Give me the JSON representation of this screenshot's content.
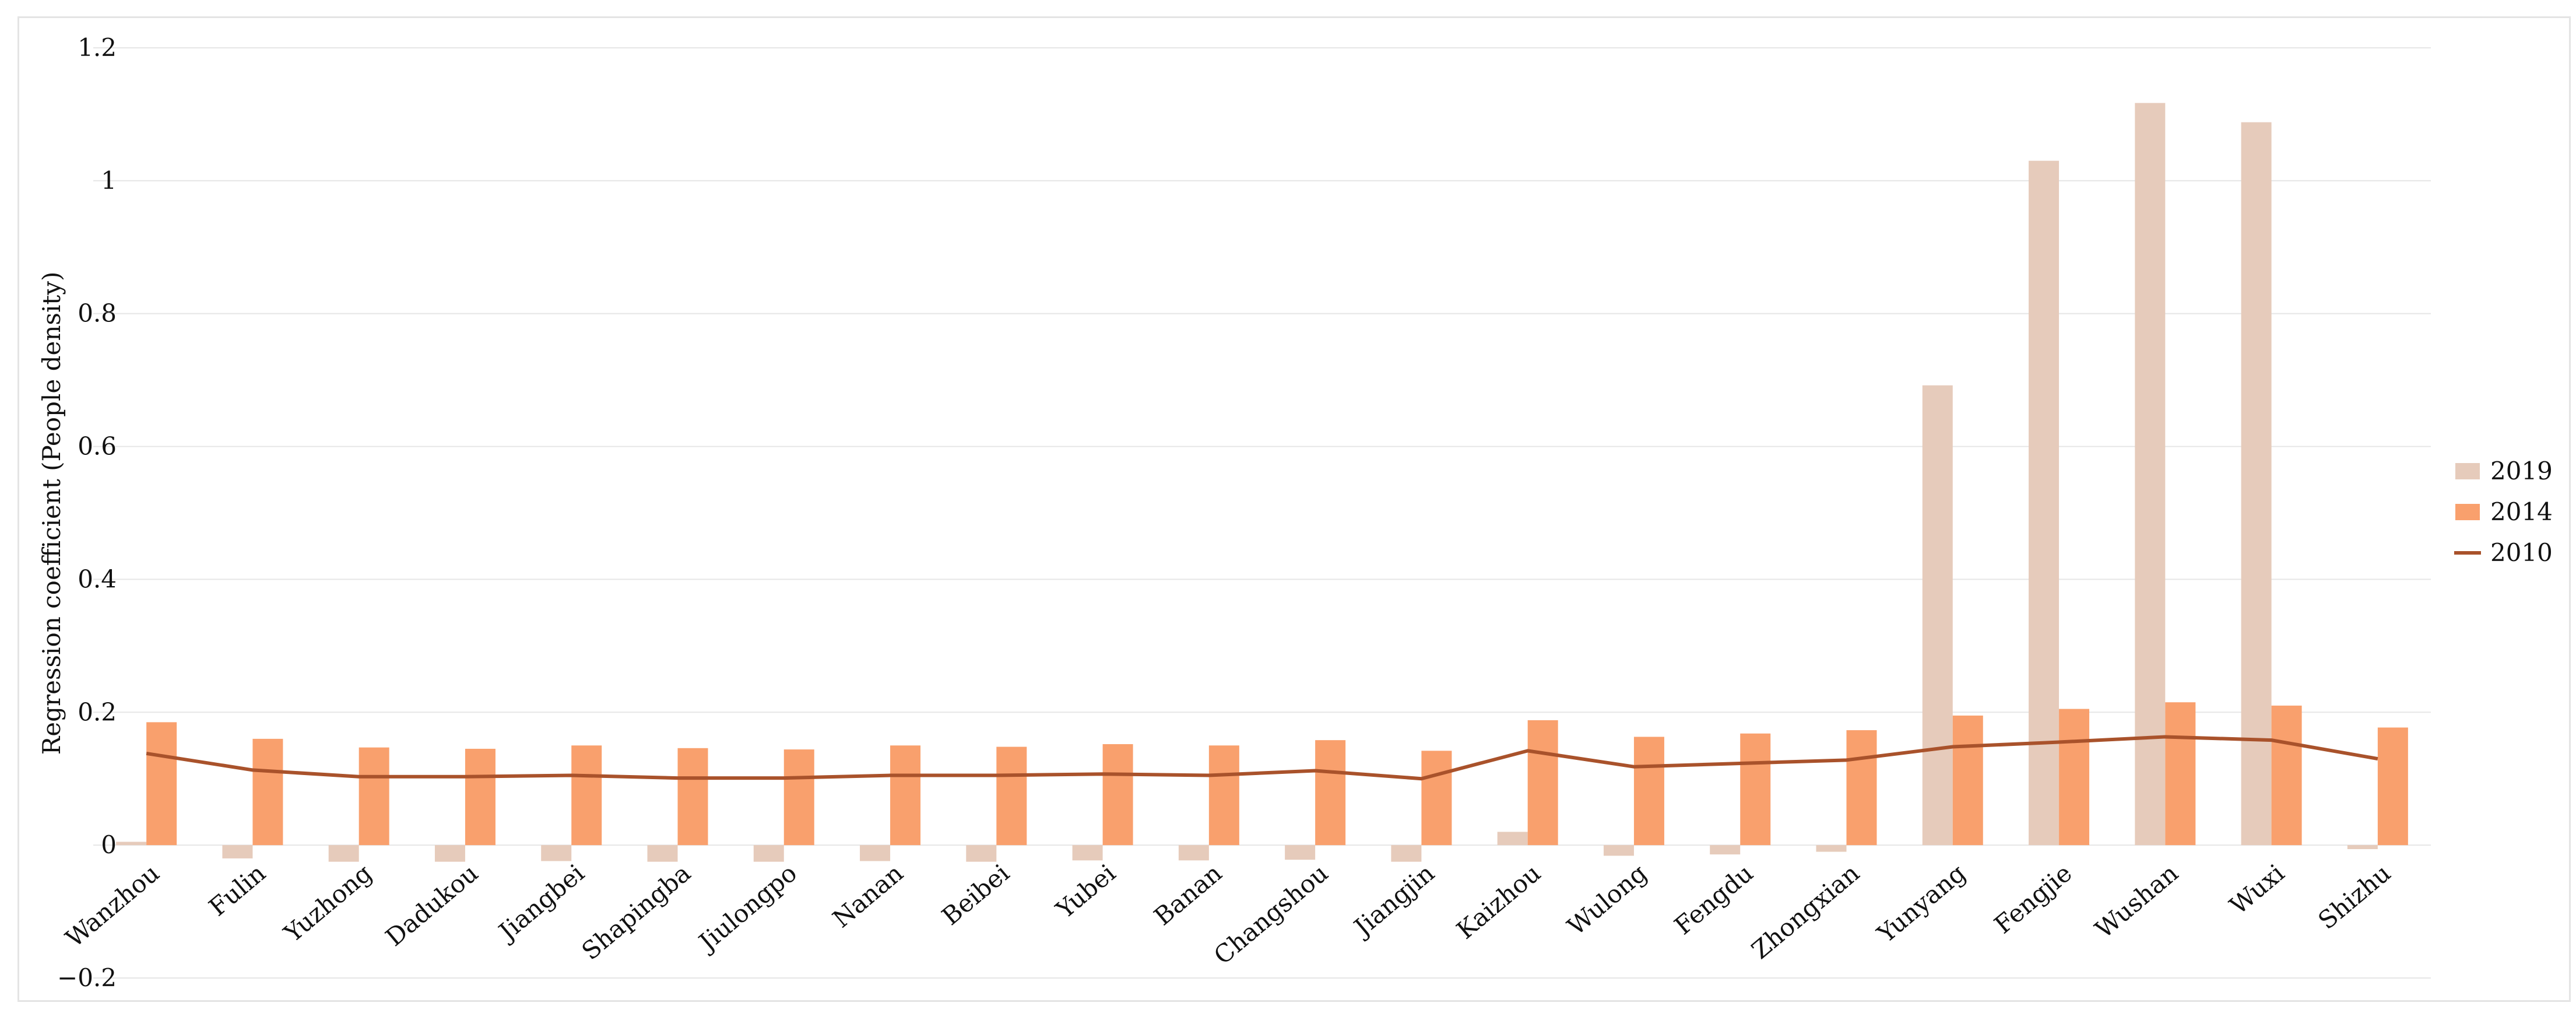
{
  "chart_data": {
    "type": "bar",
    "title": "",
    "xlabel": "",
    "ylabel": "Regression coefficient (People density)",
    "ylim": [
      -0.2,
      1.2
    ],
    "yticks": [
      -0.2,
      0,
      0.2,
      0.4,
      0.6,
      0.8,
      1,
      1.2
    ],
    "ytick_labels": [
      "−0.2",
      "0",
      "0.2",
      "0.4",
      "0.6",
      "0.8",
      "1",
      "1.2"
    ],
    "grid": true,
    "legend_position": "right",
    "categories": [
      "Wanzhou",
      "Fulin",
      "Yuzhong",
      "Dadukou",
      "Jiangbei",
      "Shapingba",
      "Jiulongpo",
      "Nanan",
      "Beibei",
      "Yubei",
      "Banan",
      "Changshou",
      "Jiangjin",
      "Kaizhou",
      "Wulong",
      "Fengdu",
      "Zhongxian",
      "Yunyang",
      "Fengjie",
      "Wushan",
      "Wuxi",
      "Shizhu"
    ],
    "series": [
      {
        "name": "2019",
        "kind": "bar",
        "color": "#e6cbbb",
        "values": [
          0.005,
          -0.02,
          -0.025,
          -0.025,
          -0.024,
          -0.025,
          -0.025,
          -0.024,
          -0.025,
          -0.023,
          -0.023,
          -0.022,
          -0.025,
          0.02,
          -0.016,
          -0.014,
          -0.01,
          0.692,
          1.03,
          1.117,
          1.088,
          -0.006
        ]
      },
      {
        "name": "2014",
        "kind": "bar",
        "color": "#f9a06d",
        "values": [
          0.185,
          0.16,
          0.147,
          0.145,
          0.15,
          0.146,
          0.144,
          0.15,
          0.148,
          0.152,
          0.15,
          0.158,
          0.142,
          0.188,
          0.163,
          0.168,
          0.173,
          0.195,
          0.205,
          0.215,
          0.21,
          0.177
        ]
      },
      {
        "name": "2010",
        "kind": "line",
        "color": "#a9522b",
        "values": [
          0.138,
          0.113,
          0.103,
          0.103,
          0.105,
          0.101,
          0.101,
          0.105,
          0.105,
          0.107,
          0.105,
          0.112,
          0.1,
          0.142,
          0.118,
          0.123,
          0.128,
          0.148,
          0.155,
          0.163,
          0.158,
          0.13
        ]
      }
    ]
  }
}
